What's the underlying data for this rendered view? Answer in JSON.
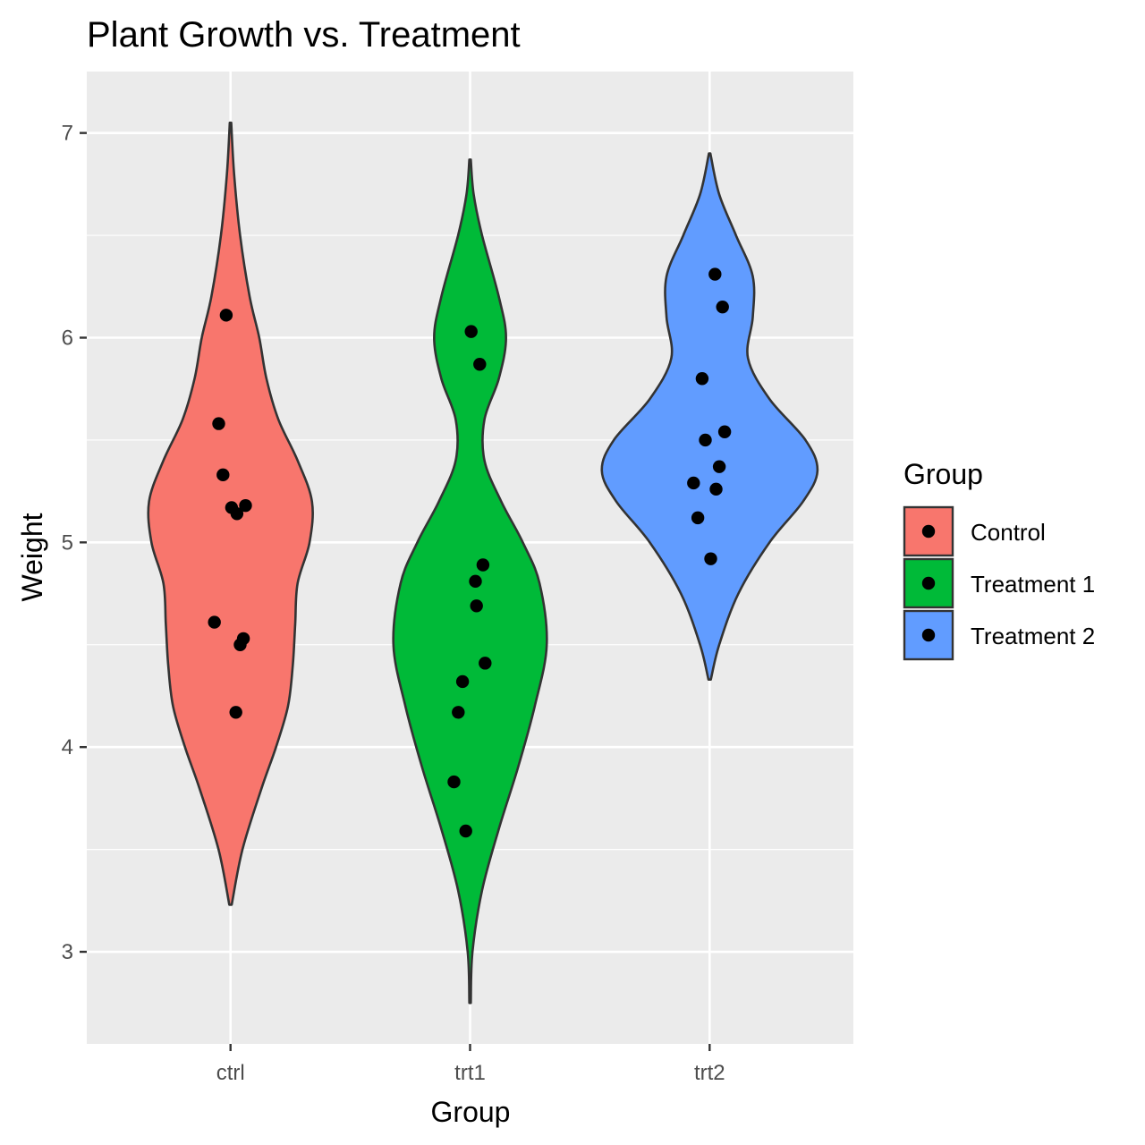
{
  "chart_data": {
    "type": "violin",
    "title": "Plant Growth vs. Treatment",
    "xlabel": "Group",
    "ylabel": "Weight",
    "categories": [
      "ctrl",
      "trt1",
      "trt2"
    ],
    "ylim": [
      2.55,
      7.3
    ],
    "yticks": [
      3,
      4,
      5,
      6,
      7
    ],
    "grid": true,
    "legend": {
      "title": "Group",
      "placement": "right",
      "entries": [
        "Control",
        "Treatment 1",
        "Treatment 2"
      ]
    },
    "colors": [
      "#F8766D",
      "#00BA38",
      "#619CFF"
    ],
    "series": [
      {
        "category": "ctrl",
        "range": [
          3.23,
          7.05
        ],
        "values": [
          4.17,
          5.58,
          5.18,
          6.11,
          4.5,
          4.61,
          5.17,
          4.53,
          5.33,
          5.14
        ],
        "density_profile": [
          [
            3.23,
            0.005
          ],
          [
            3.5,
            0.05
          ],
          [
            3.8,
            0.13
          ],
          [
            4.0,
            0.19
          ],
          [
            4.2,
            0.24
          ],
          [
            4.4,
            0.26
          ],
          [
            4.6,
            0.27
          ],
          [
            4.8,
            0.28
          ],
          [
            5.0,
            0.33
          ],
          [
            5.2,
            0.34
          ],
          [
            5.4,
            0.28
          ],
          [
            5.6,
            0.2
          ],
          [
            5.8,
            0.15
          ],
          [
            6.0,
            0.12
          ],
          [
            6.2,
            0.08
          ],
          [
            6.5,
            0.04
          ],
          [
            6.8,
            0.015
          ],
          [
            7.05,
            0.003
          ]
        ]
      },
      {
        "category": "trt1",
        "range": [
          2.75,
          6.87
        ],
        "values": [
          4.81,
          4.17,
          4.41,
          3.59,
          5.87,
          3.83,
          6.03,
          4.89,
          4.32,
          4.69
        ],
        "density_profile": [
          [
            2.75,
            0.003
          ],
          [
            3.0,
            0.01
          ],
          [
            3.3,
            0.05
          ],
          [
            3.6,
            0.12
          ],
          [
            3.9,
            0.2
          ],
          [
            4.2,
            0.27
          ],
          [
            4.5,
            0.32
          ],
          [
            4.8,
            0.29
          ],
          [
            5.0,
            0.22
          ],
          [
            5.2,
            0.13
          ],
          [
            5.4,
            0.06
          ],
          [
            5.6,
            0.06
          ],
          [
            5.8,
            0.12
          ],
          [
            6.0,
            0.15
          ],
          [
            6.2,
            0.12
          ],
          [
            6.5,
            0.05
          ],
          [
            6.7,
            0.015
          ],
          [
            6.87,
            0.003
          ]
        ]
      },
      {
        "category": "trt2",
        "range": [
          4.33,
          6.9
        ],
        "values": [
          6.31,
          5.12,
          5.54,
          5.5,
          5.37,
          5.29,
          4.92,
          6.15,
          5.8,
          5.26
        ],
        "density_profile": [
          [
            4.33,
            0.005
          ],
          [
            4.5,
            0.04
          ],
          [
            4.75,
            0.12
          ],
          [
            5.0,
            0.25
          ],
          [
            5.2,
            0.39
          ],
          [
            5.35,
            0.45
          ],
          [
            5.5,
            0.4
          ],
          [
            5.7,
            0.25
          ],
          [
            5.9,
            0.16
          ],
          [
            6.1,
            0.18
          ],
          [
            6.3,
            0.18
          ],
          [
            6.5,
            0.11
          ],
          [
            6.7,
            0.04
          ],
          [
            6.9,
            0.003
          ]
        ]
      }
    ]
  }
}
